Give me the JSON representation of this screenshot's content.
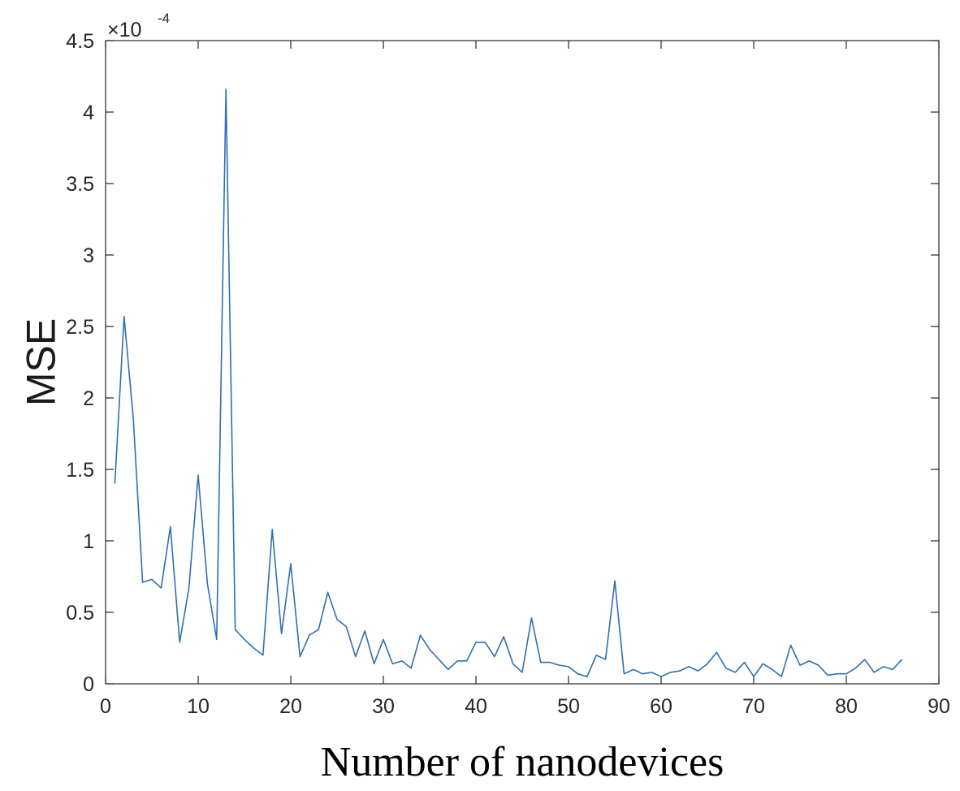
{
  "chart_data": {
    "type": "line",
    "title": "",
    "xlabel": "Number of nanodevices",
    "ylabel": "MSE",
    "xlim": [
      0,
      90
    ],
    "ylim": [
      0,
      4.5
    ],
    "y_multiplier_base": "×10",
    "y_multiplier_exp": "-4",
    "x_ticks": [
      "0",
      "10",
      "20",
      "30",
      "40",
      "50",
      "60",
      "70",
      "80",
      "90"
    ],
    "y_ticks": [
      "0",
      "0.5",
      "1",
      "1.5",
      "2",
      "2.5",
      "3",
      "3.5",
      "4",
      "4.5"
    ],
    "grid": false,
    "line_color": "#2f6fb0",
    "series": [
      {
        "x": [
          1,
          2,
          3,
          4,
          5,
          6,
          7,
          8,
          9,
          10,
          11,
          12,
          13,
          14,
          15,
          16,
          17,
          18,
          19,
          20,
          21,
          22,
          23,
          24,
          25,
          26,
          27,
          28,
          29,
          30,
          31,
          32,
          33,
          34,
          35,
          36,
          37,
          38,
          39,
          40,
          41,
          42,
          43,
          44,
          45,
          46,
          47,
          48,
          49,
          50,
          51,
          52,
          53,
          54,
          55,
          56,
          57,
          58,
          59,
          60,
          61,
          62,
          63,
          64,
          65,
          66,
          67,
          68,
          69,
          70,
          71,
          72,
          73,
          74,
          75,
          76,
          77,
          78,
          79,
          80,
          81,
          82,
          83,
          84,
          85,
          86
        ],
        "values": [
          1.4,
          2.57,
          1.85,
          0.71,
          0.73,
          0.67,
          1.1,
          0.29,
          0.67,
          1.46,
          0.7,
          0.31,
          4.16,
          0.38,
          0.31,
          0.25,
          0.2,
          1.08,
          0.35,
          0.84,
          0.19,
          0.34,
          0.38,
          0.64,
          0.45,
          0.4,
          0.19,
          0.37,
          0.14,
          0.31,
          0.14,
          0.16,
          0.11,
          0.34,
          0.24,
          0.17,
          0.1,
          0.16,
          0.16,
          0.29,
          0.29,
          0.19,
          0.33,
          0.14,
          0.08,
          0.46,
          0.15,
          0.15,
          0.13,
          0.12,
          0.07,
          0.05,
          0.2,
          0.17,
          0.72,
          0.07,
          0.1,
          0.07,
          0.08,
          0.05,
          0.08,
          0.09,
          0.12,
          0.09,
          0.14,
          0.22,
          0.11,
          0.08,
          0.15,
          0.05,
          0.14,
          0.1,
          0.05,
          0.27,
          0.13,
          0.16,
          0.13,
          0.06,
          0.07,
          0.07,
          0.11,
          0.17,
          0.08,
          0.12,
          0.1,
          0.17
        ]
      }
    ]
  }
}
